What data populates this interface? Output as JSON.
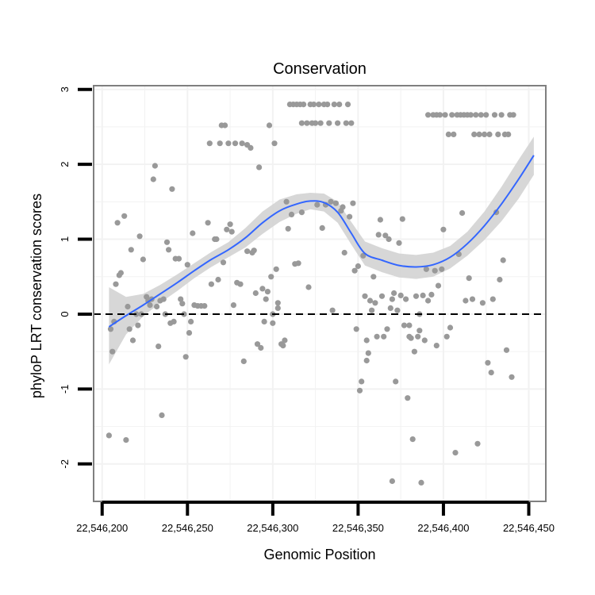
{
  "chart_data": {
    "type": "scatter",
    "title": "Conservation",
    "xlabel": "Genomic Position",
    "ylabel": "phyloP LRT conservation scores",
    "xlim": [
      22546195,
      22546460
    ],
    "ylim": [
      -2.5,
      3.05
    ],
    "x_ticks": [
      22546200,
      22546250,
      22546300,
      22546350,
      22546400,
      22546450
    ],
    "x_tick_labels": [
      "22,546,200",
      "22,546,250",
      "22,546,300",
      "22,546,350",
      "22,546,400",
      "22,546,450"
    ],
    "y_ticks": [
      -2,
      -1,
      0,
      1,
      2,
      3
    ],
    "y_tick_labels": [
      "-2",
      "-1",
      "0",
      "1",
      "2",
      "3"
    ],
    "grid": true,
    "reference_line": {
      "y": 0,
      "style": "dashed"
    },
    "colors": {
      "points": "#999999",
      "smooth": "#3366ff",
      "band": "#d3d3d3",
      "panel_border": "#7f7f7f",
      "grid": "#f2f2f2"
    },
    "points": [
      [
        22546204,
        -1.62
      ],
      [
        22546205,
        -0.2
      ],
      [
        22546206,
        -0.5
      ],
      [
        22546207,
        -0.1
      ],
      [
        22546208,
        0.4
      ],
      [
        22546209,
        1.22
      ],
      [
        22546210,
        0.52
      ],
      [
        22546211,
        0.55
      ],
      [
        22546213,
        1.31
      ],
      [
        22546214,
        -1.68
      ],
      [
        22546215,
        0.1
      ],
      [
        22546216,
        -0.2
      ],
      [
        22546217,
        0.86
      ],
      [
        22546218,
        -0.35
      ],
      [
        22546220,
        0.0
      ],
      [
        22546221,
        -0.15
      ],
      [
        22546222,
        1.04
      ],
      [
        22546223,
        0.0
      ],
      [
        22546224,
        0.73
      ],
      [
        22546226,
        0.23
      ],
      [
        22546227,
        0.18
      ],
      [
        22546228,
        0.12
      ],
      [
        22546229,
        0.2
      ],
      [
        22546230,
        1.8
      ],
      [
        22546231,
        1.98
      ],
      [
        22546232,
        0.1
      ],
      [
        22546233,
        -0.43
      ],
      [
        22546234,
        0.18
      ],
      [
        22546235,
        -1.35
      ],
      [
        22546236,
        0.2
      ],
      [
        22546237,
        0.0
      ],
      [
        22546238,
        0.96
      ],
      [
        22546239,
        0.86
      ],
      [
        22546240,
        -0.12
      ],
      [
        22546241,
        1.67
      ],
      [
        22546242,
        -0.1
      ],
      [
        22546243,
        0.74
      ],
      [
        22546245,
        0.74
      ],
      [
        22546246,
        0.2
      ],
      [
        22546247,
        0.14
      ],
      [
        22546248,
        0.0
      ],
      [
        22546249,
        -0.57
      ],
      [
        22546250,
        0.66
      ],
      [
        22546251,
        -0.25
      ],
      [
        22546252,
        -0.1
      ],
      [
        22546253,
        1.08
      ],
      [
        22546254,
        0.12
      ],
      [
        22546256,
        0.11
      ],
      [
        22546258,
        0.11
      ],
      [
        22546260,
        0.11
      ],
      [
        22546262,
        1.22
      ],
      [
        22546263,
        2.28
      ],
      [
        22546264,
        0.4
      ],
      [
        22546266,
        1.0
      ],
      [
        22546267,
        1.0
      ],
      [
        22546268,
        0.46
      ],
      [
        22546269,
        2.28
      ],
      [
        22546270,
        2.52
      ],
      [
        22546271,
        0.69
      ],
      [
        22546272,
        2.52
      ],
      [
        22546273,
        1.13
      ],
      [
        22546274,
        2.28
      ],
      [
        22546275,
        1.2
      ],
      [
        22546276,
        1.1
      ],
      [
        22546277,
        0.12
      ],
      [
        22546278,
        2.28
      ],
      [
        22546279,
        0.42
      ],
      [
        22546281,
        0.4
      ],
      [
        22546282,
        2.28
      ],
      [
        22546283,
        -0.63
      ],
      [
        22546285,
        2.26
      ],
      [
        22546285,
        0.84
      ],
      [
        22546287,
        2.22
      ],
      [
        22546288,
        0.82
      ],
      [
        22546289,
        0.85
      ],
      [
        22546290,
        0.28
      ],
      [
        22546291,
        -0.4
      ],
      [
        22546292,
        1.96
      ],
      [
        22546293,
        -0.45
      ],
      [
        22546294,
        0.34
      ],
      [
        22546295,
        -0.1
      ],
      [
        22546296,
        0.2
      ],
      [
        22546297,
        0.3
      ],
      [
        22546298,
        2.52
      ],
      [
        22546299,
        0.5
      ],
      [
        22546300,
        0.0
      ],
      [
        22546300,
        -0.12
      ],
      [
        22546301,
        2.28
      ],
      [
        22546302,
        0.6
      ],
      [
        22546303,
        0.15
      ],
      [
        22546303,
        0.08
      ],
      [
        22546305,
        -0.4
      ],
      [
        22546306,
        -0.42
      ],
      [
        22546307,
        -0.35
      ],
      [
        22546308,
        1.5
      ],
      [
        22546309,
        1.14
      ],
      [
        22546310,
        2.8
      ],
      [
        22546311,
        1.33
      ],
      [
        22546312,
        2.8
      ],
      [
        22546313,
        0.67
      ],
      [
        22546314,
        2.8
      ],
      [
        22546315,
        0.68
      ],
      [
        22546316,
        2.8
      ],
      [
        22546317,
        2.55
      ],
      [
        22546317,
        1.36
      ],
      [
        22546318,
        2.8
      ],
      [
        22546320,
        2.55
      ],
      [
        22546321,
        0.36
      ],
      [
        22546322,
        2.8
      ],
      [
        22546323,
        2.55
      ],
      [
        22546324,
        2.8
      ],
      [
        22546325,
        2.55
      ],
      [
        22546326,
        1.46
      ],
      [
        22546327,
        2.8
      ],
      [
        22546328,
        2.55
      ],
      [
        22546329,
        1.15
      ],
      [
        22546330,
        2.8
      ],
      [
        22546331,
        1.46
      ],
      [
        22546332,
        2.8
      ],
      [
        22546333,
        2.55
      ],
      [
        22546334,
        1.5
      ],
      [
        22546335,
        0.05
      ],
      [
        22546336,
        2.8
      ],
      [
        22546337,
        1.48
      ],
      [
        22546338,
        2.55
      ],
      [
        22546339,
        2.8
      ],
      [
        22546340,
        1.38
      ],
      [
        22546341,
        1.43
      ],
      [
        22546342,
        0.82
      ],
      [
        22546343,
        2.55
      ],
      [
        22546344,
        2.8
      ],
      [
        22546345,
        1.3
      ],
      [
        22546346,
        2.55
      ],
      [
        22546347,
        1.48
      ],
      [
        22546348,
        0.58
      ],
      [
        22546349,
        -0.2
      ],
      [
        22546350,
        0.64
      ],
      [
        22546351,
        -1.02
      ],
      [
        22546352,
        -0.9
      ],
      [
        22546353,
        0.78
      ],
      [
        22546354,
        0.24
      ],
      [
        22546355,
        -0.35
      ],
      [
        22546355,
        -0.62
      ],
      [
        22546356,
        -0.52
      ],
      [
        22546357,
        0.18
      ],
      [
        22546358,
        0.05
      ],
      [
        22546359,
        0.5
      ],
      [
        22546360,
        0.15
      ],
      [
        22546361,
        -0.3
      ],
      [
        22546362,
        1.06
      ],
      [
        22546363,
        1.26
      ],
      [
        22546364,
        0.24
      ],
      [
        22546365,
        -0.3
      ],
      [
        22546366,
        1.05
      ],
      [
        22546367,
        -0.2
      ],
      [
        22546368,
        1.0
      ],
      [
        22546369,
        0.08
      ],
      [
        22546370,
        0.2
      ],
      [
        22546370,
        -2.23
      ],
      [
        22546371,
        0.28
      ],
      [
        22546372,
        -0.9
      ],
      [
        22546373,
        0.05
      ],
      [
        22546374,
        0.95
      ],
      [
        22546375,
        0.25
      ],
      [
        22546376,
        1.27
      ],
      [
        22546377,
        -0.15
      ],
      [
        22546378,
        0.2
      ],
      [
        22546379,
        -1.12
      ],
      [
        22546380,
        -0.15
      ],
      [
        22546380,
        -0.3
      ],
      [
        22546381,
        -0.32
      ],
      [
        22546382,
        -1.67
      ],
      [
        22546383,
        -0.5
      ],
      [
        22546384,
        0.24
      ],
      [
        22546385,
        -0.3
      ],
      [
        22546386,
        0.0
      ],
      [
        22546386,
        -0.22
      ],
      [
        22546387,
        -2.25
      ],
      [
        22546388,
        0.25
      ],
      [
        22546389,
        -0.35
      ],
      [
        22546390,
        0.6
      ],
      [
        22546391,
        0.18
      ],
      [
        22546391,
        2.66
      ],
      [
        22546393,
        0.26
      ],
      [
        22546394,
        2.66
      ],
      [
        22546395,
        0.58
      ],
      [
        22546396,
        2.66
      ],
      [
        22546396,
        -0.42
      ],
      [
        22546397,
        0.38
      ],
      [
        22546398,
        2.66
      ],
      [
        22546399,
        0.6
      ],
      [
        22546400,
        1.13
      ],
      [
        22546401,
        2.66
      ],
      [
        22546402,
        -0.3
      ],
      [
        22546403,
        2.4
      ],
      [
        22546404,
        -0.18
      ],
      [
        22546405,
        2.66
      ],
      [
        22546406,
        2.4
      ],
      [
        22546407,
        -1.85
      ],
      [
        22546408,
        2.66
      ],
      [
        22546409,
        0.8
      ],
      [
        22546410,
        2.66
      ],
      [
        22546411,
        1.35
      ],
      [
        22546412,
        2.66
      ],
      [
        22546413,
        0.18
      ],
      [
        22546414,
        2.66
      ],
      [
        22546415,
        0.48
      ],
      [
        22546416,
        2.66
      ],
      [
        22546417,
        0.2
      ],
      [
        22546418,
        2.4
      ],
      [
        22546419,
        2.66
      ],
      [
        22546420,
        -1.73
      ],
      [
        22546421,
        2.4
      ],
      [
        22546422,
        2.66
      ],
      [
        22546423,
        0.15
      ],
      [
        22546424,
        2.4
      ],
      [
        22546425,
        2.66
      ],
      [
        22546426,
        -0.65
      ],
      [
        22546427,
        2.4
      ],
      [
        22546428,
        -0.78
      ],
      [
        22546429,
        0.2
      ],
      [
        22546430,
        2.66
      ],
      [
        22546431,
        1.36
      ],
      [
        22546432,
        2.4
      ],
      [
        22546433,
        0.46
      ],
      [
        22546434,
        2.66
      ],
      [
        22546435,
        0.72
      ],
      [
        22546436,
        2.4
      ],
      [
        22546437,
        -0.48
      ],
      [
        22546438,
        2.4
      ],
      [
        22546439,
        2.66
      ],
      [
        22546440,
        -0.84
      ],
      [
        22546441,
        2.66
      ]
    ],
    "smooth": {
      "method": "loess",
      "x": [
        22546204,
        22546214,
        22546224,
        22546234,
        22546244,
        22546254,
        22546264,
        22546274,
        22546284,
        22546294,
        22546304,
        22546314,
        22546322,
        22546330,
        22546338,
        22546346,
        22546354,
        22546364,
        22546374,
        22546384,
        22546394,
        22546404,
        22546414,
        22546424,
        22546434,
        22546444,
        22546453
      ],
      "y": [
        -0.17,
        -0.02,
        0.12,
        0.27,
        0.42,
        0.58,
        0.73,
        0.86,
        1.02,
        1.22,
        1.38,
        1.47,
        1.51,
        1.49,
        1.36,
        1.08,
        0.81,
        0.72,
        0.65,
        0.63,
        0.66,
        0.76,
        0.94,
        1.18,
        1.47,
        1.8,
        2.12
      ],
      "lower": [
        -0.67,
        -0.27,
        -0.03,
        0.15,
        0.31,
        0.48,
        0.63,
        0.76,
        0.89,
        1.07,
        1.23,
        1.34,
        1.4,
        1.37,
        1.22,
        0.93,
        0.65,
        0.56,
        0.49,
        0.47,
        0.5,
        0.61,
        0.78,
        0.99,
        1.24,
        1.54,
        1.86
      ],
      "upper": [
        0.36,
        0.23,
        0.27,
        0.39,
        0.53,
        0.68,
        0.83,
        0.96,
        1.15,
        1.37,
        1.53,
        1.6,
        1.62,
        1.61,
        1.5,
        1.23,
        0.97,
        0.88,
        0.81,
        0.79,
        0.82,
        0.91,
        1.1,
        1.37,
        1.7,
        2.06,
        2.37
      ]
    }
  }
}
